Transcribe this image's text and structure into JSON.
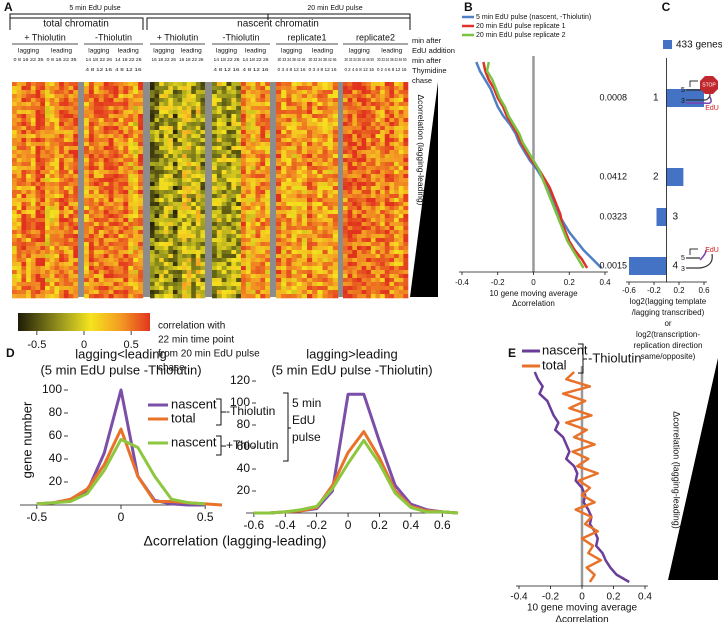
{
  "heatmap": {
    "label": "A",
    "pulses": [
      "5 min EdU pulse",
      "20 min EdU pulse"
    ],
    "groups": [
      "total chromatin",
      "nascent chromatin"
    ],
    "blocks": [
      {
        "condition": "+ Thiolutin",
        "strands": [
          {
            "strand": "lagging",
            "edu": "0 8 16 22 35"
          },
          {
            "strand": "leading",
            "edu": "0 8 16 22 35"
          }
        ]
      },
      {
        "condition": "-Thiolutin",
        "strands": [
          {
            "strand": "lagging",
            "edu": "14 18 22 26",
            "chase": "4 8 12 16"
          },
          {
            "strand": "leading",
            "edu": "14 18 22 26",
            "chase": "4 8 12 16"
          }
        ]
      },
      {
        "condition": "+ Thiolutin",
        "strands": [
          {
            "strand": "lagging",
            "edu": "16 18 22 26"
          },
          {
            "strand": "leading",
            "edu": "16 18 22 26"
          }
        ]
      },
      {
        "condition": "-Thiolutin",
        "strands": [
          {
            "strand": "lagging",
            "edu": "14 18 22 26",
            "chase": "4 8 12 16"
          },
          {
            "strand": "leading",
            "edu": "14 18 22 26",
            "chase": "4 8 12 16"
          }
        ]
      },
      {
        "condition": "replicate1",
        "strands": [
          {
            "strand": "lagging",
            "edu": "30 33 34 38 42 46",
            "chase": "0 3 4 8 12 16"
          },
          {
            "strand": "leading",
            "edu": "30 33 34 38 42 46",
            "chase": "0 3 4 8 12 16"
          }
        ]
      },
      {
        "condition": "replicate2",
        "strands": [
          {
            "strand": "lagging",
            "edu": "30 33 34 38 42 46 50",
            "chase": "0 2 4 6 8 12 16"
          },
          {
            "strand": "leading",
            "edu": "30 33 34 38 42 46 50",
            "chase": "0 2 4 6 8 12 16"
          }
        ]
      }
    ],
    "edu_note": [
      "min after",
      "EdU addition"
    ],
    "chase_note": [
      "min after",
      "Thymidine",
      "chase"
    ],
    "ylabel": "Δcorrelation (lagging-leading)",
    "colorbar": {
      "lim": [
        -0.7,
        0.7
      ],
      "ticks": [
        -0.5,
        0,
        0.5
      ],
      "label": [
        "correlation with",
        "22 min time point",
        "from 20 min EdU pulse",
        "chase"
      ]
    }
  },
  "chart_data": [
    {
      "type": "vline",
      "label": "B",
      "zero_line": true,
      "series": [
        {
          "name": "5 min EdU pulse (nascent, -Thiolutin)",
          "color": "#4f7fc4",
          "values": [
            -0.32,
            -0.3,
            -0.27,
            -0.24,
            -0.22,
            -0.2,
            -0.17,
            -0.13,
            -0.1,
            -0.08,
            -0.05,
            -0.02,
            0.02,
            0.05,
            0.08,
            0.1,
            0.12,
            0.14,
            0.17,
            0.2,
            0.24,
            0.28,
            0.33,
            0.38
          ]
        },
        {
          "name": "20 min EdU pulse replicate 1",
          "color": "#e0302a",
          "values": [
            -0.28,
            -0.27,
            -0.25,
            -0.22,
            -0.2,
            -0.17,
            -0.15,
            -0.12,
            -0.09,
            -0.07,
            -0.04,
            -0.01,
            0.03,
            0.06,
            0.09,
            0.11,
            0.13,
            0.15,
            0.16,
            0.18,
            0.2,
            0.23,
            0.27,
            0.3
          ]
        },
        {
          "name": "20 min EdU pulse replicate 2",
          "color": "#7cc242",
          "values": [
            -0.25,
            -0.26,
            -0.23,
            -0.21,
            -0.19,
            -0.16,
            -0.14,
            -0.11,
            -0.08,
            -0.06,
            -0.03,
            0,
            0.03,
            0.05,
            0.07,
            0.09,
            0.11,
            0.13,
            0.15,
            0.17,
            0.19,
            0.22,
            0.25,
            0.28
          ]
        }
      ],
      "xlim": [
        -0.4,
        0.4
      ],
      "xticks": [
        -0.4,
        -0.2,
        0,
        0.2,
        0.4
      ],
      "xlabel": [
        "10 gene moving average",
        "Δcorrelation"
      ]
    },
    {
      "type": "hbar",
      "label": "C",
      "categories": [
        "1",
        "2",
        "3",
        "4"
      ],
      "series": [
        {
          "name": "433 genes",
          "color": "#4472c4",
          "values": [
            0.6,
            0.27,
            -0.16,
            -0.6
          ]
        }
      ],
      "annotations": [
        "0.0008",
        "0.0412",
        "0.0323",
        "0.0015"
      ],
      "xlim": [
        -0.6,
        0.6
      ],
      "xticks": [
        -0.6,
        -0.2,
        0.2,
        0.6
      ],
      "xlabel": [
        "log2(lagging template",
        "/lagging transcribed)",
        "or",
        "log2(transcription-",
        "replication direction",
        "same/opposite)"
      ],
      "icons": [
        {
          "labels": [
            "5",
            "3",
            "STOP",
            "EdU"
          ]
        },
        {
          "labels": [
            "5",
            "3",
            "EdU"
          ]
        }
      ]
    },
    {
      "type": "line",
      "label": "D",
      "title": [
        "lagging<leading",
        "(5 min EdU pulse -Thiolutin)"
      ],
      "ylabel": "gene number",
      "x": [
        -0.5,
        -0.4,
        -0.3,
        -0.2,
        -0.1,
        0,
        0.1,
        0.2,
        0.3,
        0.4,
        0.5,
        0.6
      ],
      "series": [
        {
          "name": "nascent",
          "color": "#7b4fa8",
          "values": [
            1,
            2,
            4,
            12,
            45,
            100,
            25,
            4,
            1,
            0,
            0,
            null
          ]
        },
        {
          "name": "total",
          "color": "#e8722a",
          "values": [
            1,
            2,
            5,
            14,
            35,
            66,
            25,
            3,
            3,
            2,
            1,
            0
          ]
        },
        {
          "name": "nascent",
          "color": "#8dc63f",
          "values": [
            1,
            2,
            3,
            10,
            30,
            57,
            50,
            25,
            5,
            2,
            1,
            null
          ]
        }
      ],
      "legend_groups": [
        "-Thiolutin",
        "+Thiolutin"
      ],
      "legend_note": [
        "5 min",
        "EdU",
        "pulse"
      ],
      "xlim": [
        -0.6,
        0.6
      ],
      "xticks": [
        -0.5,
        0,
        0.5
      ],
      "ylim": [
        0,
        100
      ],
      "yticks": [
        20,
        40,
        60,
        80,
        100
      ]
    },
    {
      "type": "line",
      "title": [
        "lagging>leading",
        "(5 min EdU pulse -Thiolutin)"
      ],
      "x": [
        -0.6,
        -0.5,
        -0.4,
        -0.3,
        -0.2,
        -0.1,
        0,
        0.1,
        0.2,
        0.3,
        0.4,
        0.5,
        0.6,
        0.7
      ],
      "series": [
        {
          "name": "nascent",
          "color": "#7b4fa8",
          "values": [
            0,
            0,
            1,
            2,
            4,
            20,
            108,
            108,
            65,
            25,
            8,
            3,
            1,
            0
          ]
        },
        {
          "name": "total",
          "color": "#e8722a",
          "values": [
            0,
            0,
            1,
            2,
            5,
            25,
            55,
            74,
            50,
            20,
            6,
            2,
            1,
            0
          ]
        },
        {
          "name": "nascent",
          "color": "#8dc63f",
          "values": [
            0,
            0,
            1,
            3,
            6,
            22,
            45,
            66,
            45,
            18,
            5,
            1,
            1,
            0
          ]
        }
      ],
      "xlim": [
        -0.65,
        0.7
      ],
      "xticks": [
        -0.6,
        -0.4,
        -0.2,
        0,
        0.2,
        0.4,
        0.6
      ],
      "ylim": [
        0,
        120
      ],
      "yticks": [
        20,
        40,
        60,
        80,
        100,
        120
      ],
      "xlabel": "Δcorrelation (lagging-leading)"
    },
    {
      "type": "vline",
      "label": "E",
      "zero_line": true,
      "ylabel": "Δcorrelation (lagging-leading)",
      "legend_group": "-Thiolutin",
      "series": [
        {
          "name": "nascent",
          "color": "#6a3d9a",
          "values": [
            -0.3,
            -0.28,
            -0.25,
            -0.27,
            -0.22,
            -0.2,
            -0.18,
            -0.15,
            -0.17,
            -0.12,
            -0.1,
            -0.08,
            -0.1,
            -0.05,
            -0.03,
            -0.04,
            0,
            0.02,
            0.01,
            0.04,
            0.06,
            0.05,
            0.08,
            0.1,
            0.09,
            0.13,
            0.15,
            0.18,
            0.22,
            0.3
          ]
        },
        {
          "name": "total",
          "color": "#e8722a",
          "values": [
            -0.05,
            -0.1,
            0.05,
            -0.12,
            0.02,
            -0.08,
            0.06,
            -0.1,
            0.03,
            -0.05,
            0.08,
            -0.06,
            0.04,
            -0.03,
            0.1,
            -0.02,
            0.05,
            0,
            0.08,
            -0.04,
            0.06,
            0.02,
            0.1,
            0,
            0.07,
            0.04,
            0.12,
            0.03,
            0.08,
            0.05
          ]
        }
      ],
      "xlim": [
        -0.4,
        0.4
      ],
      "xticks": [
        -0.4,
        -0.2,
        0,
        0.2,
        0.4
      ],
      "xlabel": [
        "10 gene moving average",
        "Δcorrelation"
      ]
    }
  ]
}
